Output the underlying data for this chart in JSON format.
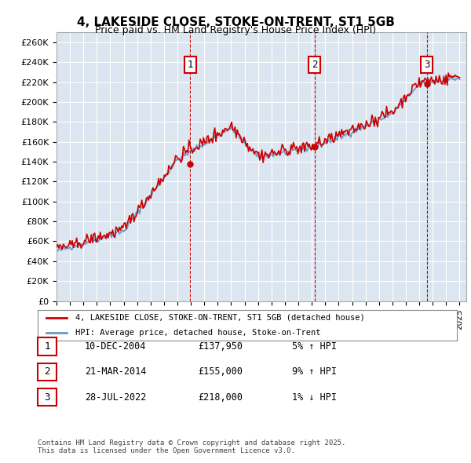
{
  "title": "4, LAKESIDE CLOSE, STOKE-ON-TRENT, ST1 5GB",
  "subtitle": "Price paid vs. HM Land Registry's House Price Index (HPI)",
  "background_color": "#dce6f0",
  "plot_bg_color": "#dce6f0",
  "y_label_format": "£{0}K",
  "yticks": [
    0,
    20000,
    40000,
    60000,
    80000,
    100000,
    120000,
    140000,
    160000,
    180000,
    200000,
    220000,
    240000,
    260000
  ],
  "ylim": [
    0,
    270000
  ],
  "xlim_start": 1995,
  "xlim_end": 2025.5,
  "sale_dates": [
    2004.94,
    2014.22,
    2022.57
  ],
  "sale_prices": [
    137950,
    155000,
    218000
  ],
  "sale_labels": [
    "1",
    "2",
    "3"
  ],
  "sale_annotations": [
    {
      "label": "1",
      "date": "10-DEC-2004",
      "price": "£137,950",
      "hpi": "5% ↑ HPI"
    },
    {
      "label": "2",
      "date": "21-MAR-2014",
      "price": "£155,000",
      "hpi": "9% ↑ HPI"
    },
    {
      "label": "3",
      "date": "28-JUL-2022",
      "price": "£218,000",
      "hpi": "1% ↓ HPI"
    }
  ],
  "hpi_color": "#6699cc",
  "price_color": "#cc0000",
  "legend_label_price": "4, LAKESIDE CLOSE, STOKE-ON-TRENT, ST1 5GB (detached house)",
  "legend_label_hpi": "HPI: Average price, detached house, Stoke-on-Trent",
  "footnote": "Contains HM Land Registry data © Crown copyright and database right 2025.\nThis data is licensed under the Open Government Licence v3.0."
}
